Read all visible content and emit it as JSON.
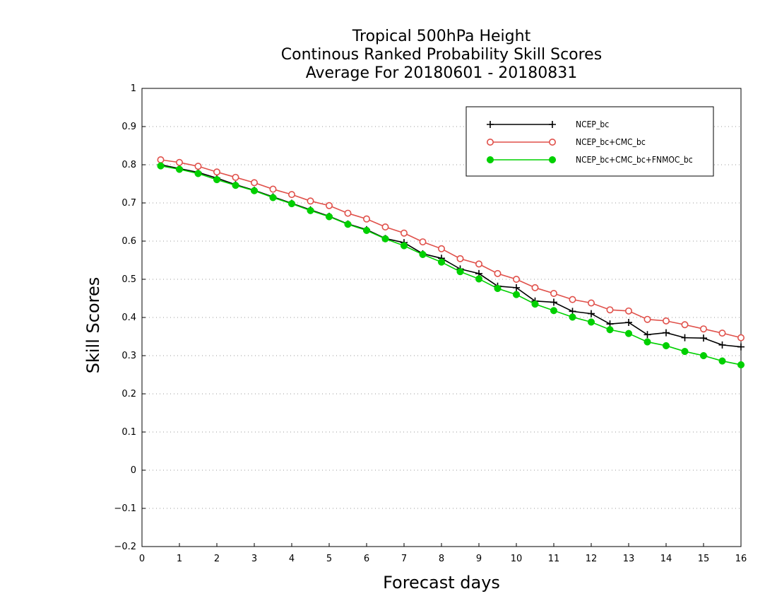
{
  "chart_data": {
    "type": "line",
    "title_lines": [
      "Tropical 500hPa Height",
      "Continous Ranked Probability Skill Scores",
      "Average For 20180601 - 20180831"
    ],
    "xlabel": "Forecast days",
    "ylabel": "Skill Scores",
    "xlim": [
      0,
      16
    ],
    "ylim": [
      -0.2,
      1
    ],
    "xticks": [
      0,
      1,
      2,
      3,
      4,
      5,
      6,
      7,
      8,
      9,
      10,
      11,
      12,
      13,
      14,
      15,
      16
    ],
    "yticks": [
      -0.2,
      -0.1,
      0,
      0.1,
      0.2,
      0.3,
      0.4,
      0.5,
      0.6,
      0.7,
      0.8,
      0.9,
      1
    ],
    "ytick_labels": [
      "−0.2",
      "−0.1",
      "0",
      "0.1",
      "0.2",
      "0.3",
      "0.4",
      "0.5",
      "0.6",
      "0.7",
      "0.8",
      "0.9",
      "1"
    ],
    "grid": "horizontal dotted",
    "legend_position": "top-right",
    "x": [
      0.5,
      1,
      1.5,
      2,
      2.5,
      3,
      3.5,
      4,
      4.5,
      5,
      5.5,
      6,
      6.5,
      7,
      7.5,
      8,
      8.5,
      9,
      9.5,
      10,
      10.5,
      11,
      11.5,
      12,
      12.5,
      13,
      13.5,
      14,
      14.5,
      15,
      15.5,
      16
    ],
    "series": [
      {
        "name": "NCEP_bc",
        "color": "#000000",
        "marker": "plus",
        "values": [
          0.8,
          0.79,
          0.78,
          0.765,
          0.748,
          0.733,
          0.716,
          0.699,
          0.682,
          0.665,
          0.645,
          0.63,
          0.607,
          0.596,
          0.567,
          0.555,
          0.527,
          0.515,
          0.482,
          0.478,
          0.443,
          0.44,
          0.416,
          0.41,
          0.383,
          0.387,
          0.355,
          0.36,
          0.347,
          0.346,
          0.328,
          0.323
        ]
      },
      {
        "name": "NCEP_bc+CMC_bc",
        "color": "#e0504a",
        "marker": "open-circle",
        "values": [
          0.813,
          0.806,
          0.796,
          0.781,
          0.767,
          0.753,
          0.736,
          0.722,
          0.705,
          0.693,
          0.673,
          0.658,
          0.637,
          0.621,
          0.598,
          0.58,
          0.554,
          0.54,
          0.515,
          0.5,
          0.478,
          0.463,
          0.447,
          0.438,
          0.42,
          0.417,
          0.395,
          0.391,
          0.381,
          0.37,
          0.359,
          0.347
        ]
      },
      {
        "name": "NCEP_bc+CMC_bc+FNMOC_bc",
        "color": "#00d000",
        "marker": "filled-circle",
        "values": [
          0.797,
          0.788,
          0.777,
          0.761,
          0.746,
          0.732,
          0.714,
          0.698,
          0.68,
          0.664,
          0.644,
          0.628,
          0.606,
          0.588,
          0.565,
          0.545,
          0.52,
          0.501,
          0.476,
          0.46,
          0.435,
          0.418,
          0.401,
          0.388,
          0.368,
          0.358,
          0.336,
          0.326,
          0.311,
          0.3,
          0.286,
          0.276
        ]
      }
    ]
  }
}
